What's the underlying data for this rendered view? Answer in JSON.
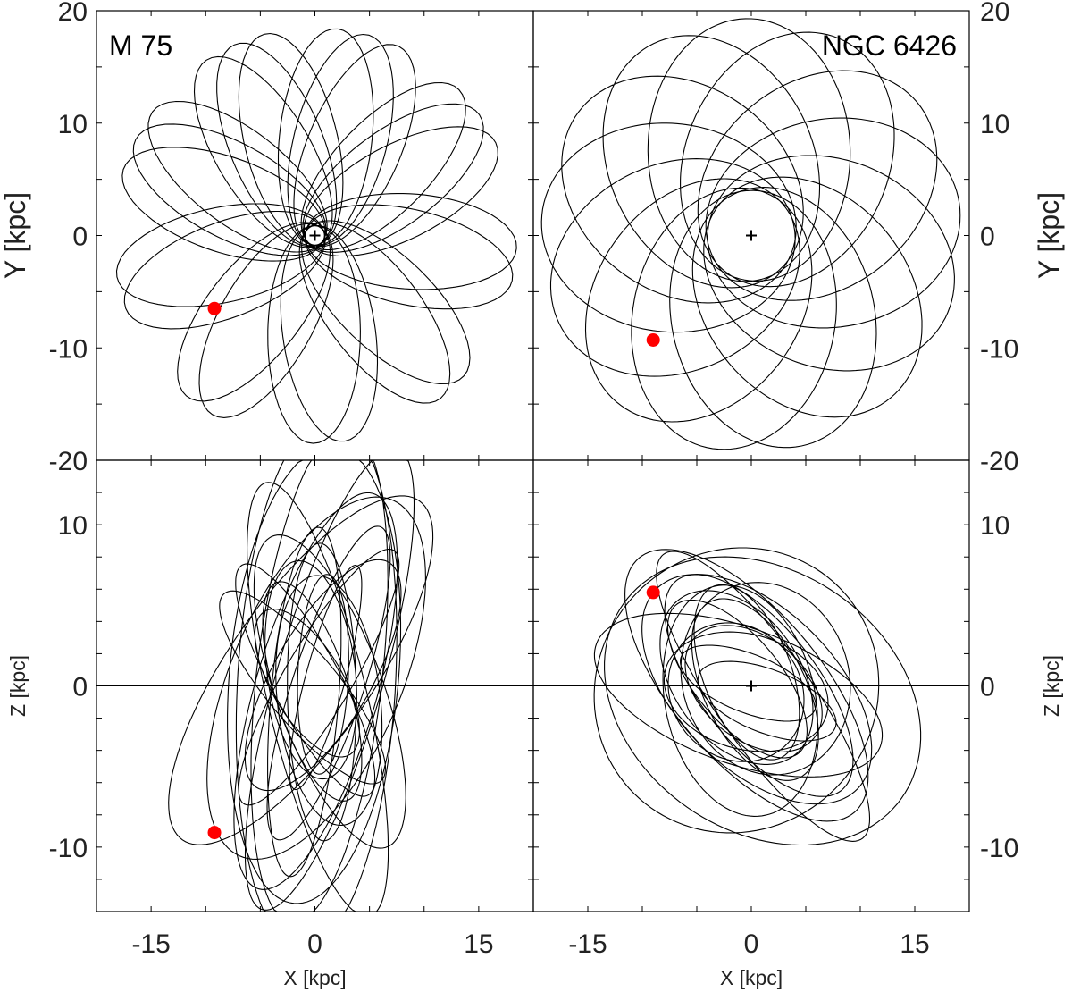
{
  "figure": {
    "colors": {
      "orbit": "#000000",
      "marker": "#ff0000",
      "text": "#222222"
    },
    "x_axis_label": "X [kpc]",
    "y_axis_label_top": "Y [kpc]",
    "y_axis_label_bottom": "Z [kpc]"
  },
  "chart_data": [
    {
      "id": "m75-xy",
      "type": "line",
      "title": "M 75",
      "xlabel": "",
      "ylabel": "Y [kpc]",
      "xlim": [
        -20,
        20
      ],
      "ylim": [
        -20,
        20
      ],
      "xticks": [],
      "yticks": [
        20,
        10,
        0,
        -10,
        -20
      ],
      "zero_line": false,
      "center_plus": true,
      "inner_ring_radius": 0.9,
      "orbit": {
        "kind": "rosette_xy",
        "rp": 0.8,
        "ra": 18.5,
        "n_loops": 22,
        "step_deg": 39,
        "phase_deg": 205
      },
      "current_position": {
        "x": -9.2,
        "y": -6.5
      }
    },
    {
      "id": "ngc6426-xy",
      "type": "line",
      "title": "NGC 6426",
      "xlabel": "",
      "ylabel": "Y [kpc]",
      "xlim": [
        -20,
        20
      ],
      "ylim": [
        -20,
        20
      ],
      "xticks": [],
      "yticks": [
        20,
        10,
        0,
        -10,
        -20
      ],
      "zero_line": false,
      "center_plus": true,
      "inner_ring_radius": 0,
      "orbit": {
        "kind": "rosette_xy",
        "rp": 4.0,
        "ra": 19.3,
        "n_loops": 13,
        "step_deg": 27.7,
        "phase_deg": 230
      },
      "current_position": {
        "x": -9.0,
        "y": -9.3
      }
    },
    {
      "id": "m75-xz",
      "type": "line",
      "title": "",
      "xlabel": "X [kpc]",
      "ylabel": "Z [kpc]",
      "xlim": [
        -20,
        20
      ],
      "ylim": [
        -14,
        14
      ],
      "xticks": [
        -15,
        0,
        15
      ],
      "yticks": [
        10,
        0,
        -10
      ],
      "zero_line": true,
      "center_plus": false,
      "inner_ring_radius": 0,
      "orbit": {
        "kind": "ellipses_xz",
        "tilt_center_deg": 90,
        "tilt_spread_deg": 55,
        "a_min": 5,
        "a_max": 17,
        "b_ratio": 0.42,
        "n_loops": 22,
        "seed": 7
      },
      "current_position": {
        "x": -9.2,
        "y": -9.1
      }
    },
    {
      "id": "ngc6426-xz",
      "type": "line",
      "title": "",
      "xlabel": "X [kpc]",
      "ylabel": "Z [kpc]",
      "xlim": [
        -20,
        20
      ],
      "ylim": [
        -14,
        14
      ],
      "xticks": [
        -15,
        0,
        15
      ],
      "yticks": [
        10,
        0,
        -10
      ],
      "zero_line": true,
      "center_plus": true,
      "inner_ring_radius": 0,
      "orbit": {
        "kind": "ellipses_xz",
        "tilt_center_deg": -25,
        "tilt_spread_deg": 30,
        "a_min": 5,
        "a_max": 15,
        "b_ratio": 0.55,
        "n_loops": 18,
        "seed": 11
      },
      "current_position": {
        "x": -9.0,
        "y": 5.8
      }
    }
  ]
}
